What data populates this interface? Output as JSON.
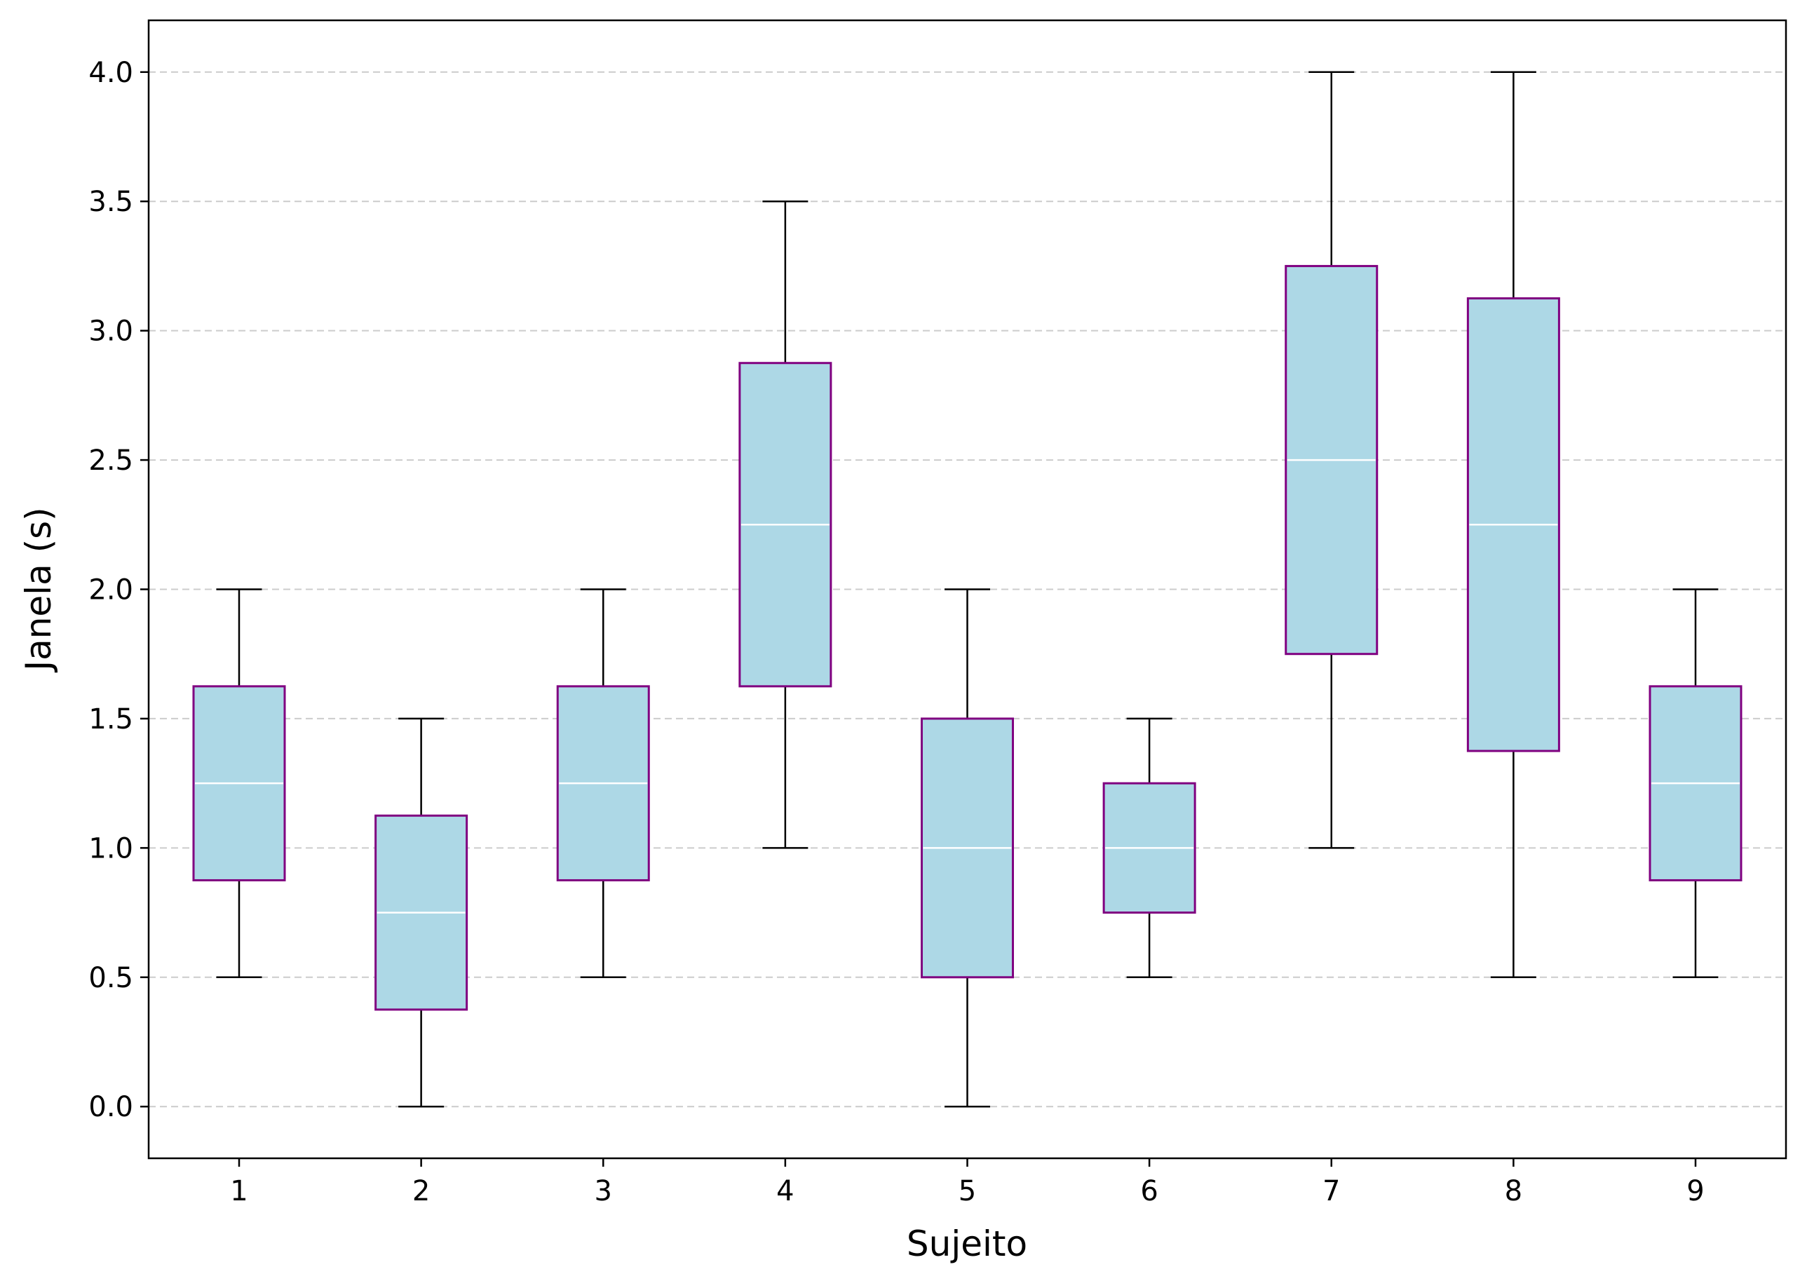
{
  "chart_data": {
    "type": "box",
    "title": "",
    "xlabel": "Sujeito",
    "ylabel": "Janela (s)",
    "ylim": [
      -0.2,
      4.2
    ],
    "yticks": [
      "0.0",
      "0.5",
      "1.0",
      "1.5",
      "2.0",
      "2.5",
      "3.0",
      "3.5",
      "4.0"
    ],
    "grid": "y-dashed",
    "colors": {
      "box_fill": "#add8e6",
      "box_edge": "#800080",
      "median": "#ffffff",
      "whisker": "#000000",
      "grid": "#cccccc"
    },
    "categories": [
      "1",
      "2",
      "3",
      "4",
      "5",
      "6",
      "7",
      "8",
      "9"
    ],
    "boxes": [
      {
        "label": "1",
        "min": 0.5,
        "q1": 0.875,
        "median": 1.25,
        "q3": 1.625,
        "max": 2.0
      },
      {
        "label": "2",
        "min": 0.0,
        "q1": 0.375,
        "median": 0.75,
        "q3": 1.125,
        "max": 1.5
      },
      {
        "label": "3",
        "min": 0.5,
        "q1": 0.875,
        "median": 1.25,
        "q3": 1.625,
        "max": 2.0
      },
      {
        "label": "4",
        "min": 1.0,
        "q1": 1.625,
        "median": 2.25,
        "q3": 2.875,
        "max": 3.5
      },
      {
        "label": "5",
        "min": 0.0,
        "q1": 0.5,
        "median": 1.0,
        "q3": 1.5,
        "max": 2.0
      },
      {
        "label": "6",
        "min": 0.5,
        "q1": 0.75,
        "median": 1.0,
        "q3": 1.25,
        "max": 1.5
      },
      {
        "label": "7",
        "min": 1.0,
        "q1": 1.75,
        "median": 2.5,
        "q3": 3.25,
        "max": 4.0
      },
      {
        "label": "8",
        "min": 0.5,
        "q1": 1.375,
        "median": 2.25,
        "q3": 3.125,
        "max": 4.0
      },
      {
        "label": "9",
        "min": 0.5,
        "q1": 0.875,
        "median": 1.25,
        "q3": 1.625,
        "max": 2.0
      }
    ]
  }
}
